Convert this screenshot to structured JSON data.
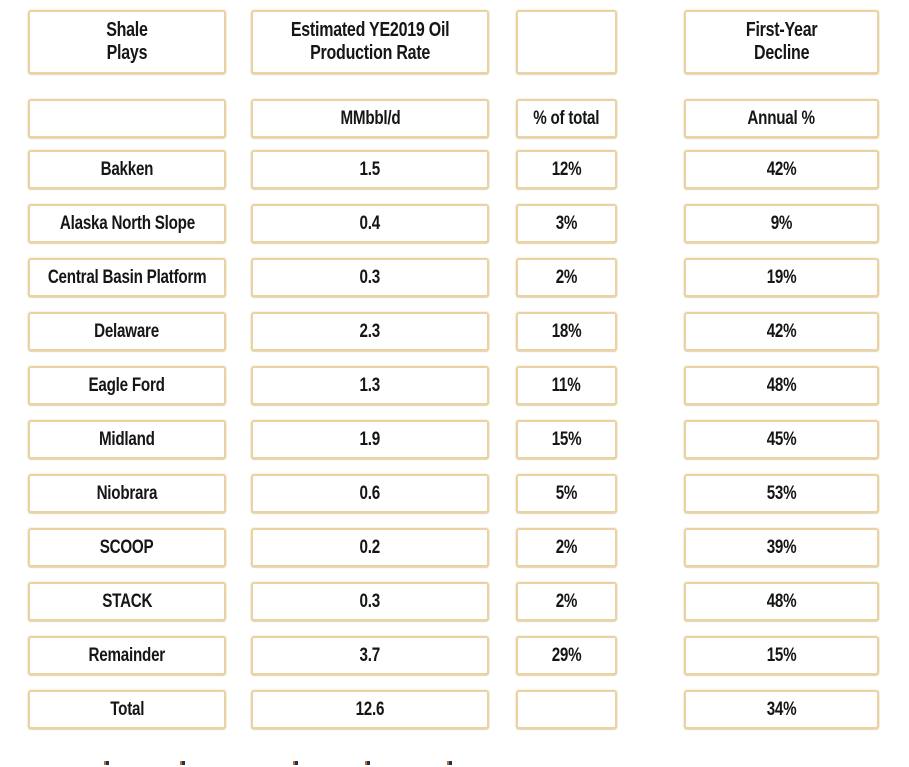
{
  "style": {
    "border_color": "#e9d3a2",
    "text_color": "#161616",
    "background_color": "#ffffff"
  },
  "table": {
    "column_headers": [
      {
        "line1": "Shale",
        "line2": "Plays"
      },
      {
        "line1": "Estimated YE2019 Oil",
        "line2": "Production Rate"
      },
      {
        "line1": "",
        "line2": ""
      },
      {
        "line1": "First-Year",
        "line2": "Decline"
      }
    ],
    "unit_labels": {
      "play": "",
      "rate": "MMbbl/d",
      "pct": "% of total",
      "decline": "Annual %"
    },
    "rows": [
      {
        "play": "Bakken",
        "rate": "1.5",
        "pct": "12%",
        "decline": "42%"
      },
      {
        "play": "Alaska North Slope",
        "rate": "0.4",
        "pct": "3%",
        "decline": "9%"
      },
      {
        "play": "Central Basin Platform",
        "rate": "0.3",
        "pct": "2%",
        "decline": "19%"
      },
      {
        "play": "Delaware",
        "rate": "2.3",
        "pct": "18%",
        "decline": "42%"
      },
      {
        "play": "Eagle Ford",
        "rate": "1.3",
        "pct": "11%",
        "decline": "48%"
      },
      {
        "play": "Midland",
        "rate": "1.9",
        "pct": "15%",
        "decline": "45%"
      },
      {
        "play": "Niobrara",
        "rate": "0.6",
        "pct": "5%",
        "decline": "53%"
      },
      {
        "play": "SCOOP",
        "rate": "0.2",
        "pct": "2%",
        "decline": "39%"
      },
      {
        "play": "STACK",
        "rate": "0.3",
        "pct": "2%",
        "decline": "48%"
      },
      {
        "play": "Remainder",
        "rate": "3.7",
        "pct": "29%",
        "decline": "15%"
      }
    ],
    "total": {
      "label": "Total",
      "rate": "12.6",
      "pct": "",
      "decline": "34%"
    }
  },
  "chart_data": {
    "type": "table",
    "title": "",
    "columns": [
      "Shale Plays",
      "Estimated YE2019 Oil Production Rate (MMbbl/d)",
      "% of total",
      "First-Year Decline (Annual %)"
    ],
    "rows": [
      [
        "Bakken",
        1.5,
        "12%",
        "42%"
      ],
      [
        "Alaska North Slope",
        0.4,
        "3%",
        "9%"
      ],
      [
        "Central Basin Platform",
        0.3,
        "2%",
        "19%"
      ],
      [
        "Delaware",
        2.3,
        "18%",
        "42%"
      ],
      [
        "Eagle Ford",
        1.3,
        "11%",
        "48%"
      ],
      [
        "Midland",
        1.9,
        "15%",
        "45%"
      ],
      [
        "Niobrara",
        0.6,
        "5%",
        "53%"
      ],
      [
        "SCOOP",
        0.2,
        "2%",
        "39%"
      ],
      [
        "STACK",
        0.3,
        "2%",
        "48%"
      ],
      [
        "Remainder",
        3.7,
        "29%",
        "15%"
      ]
    ],
    "total_row": [
      "Total",
      12.6,
      "",
      "34%"
    ]
  }
}
